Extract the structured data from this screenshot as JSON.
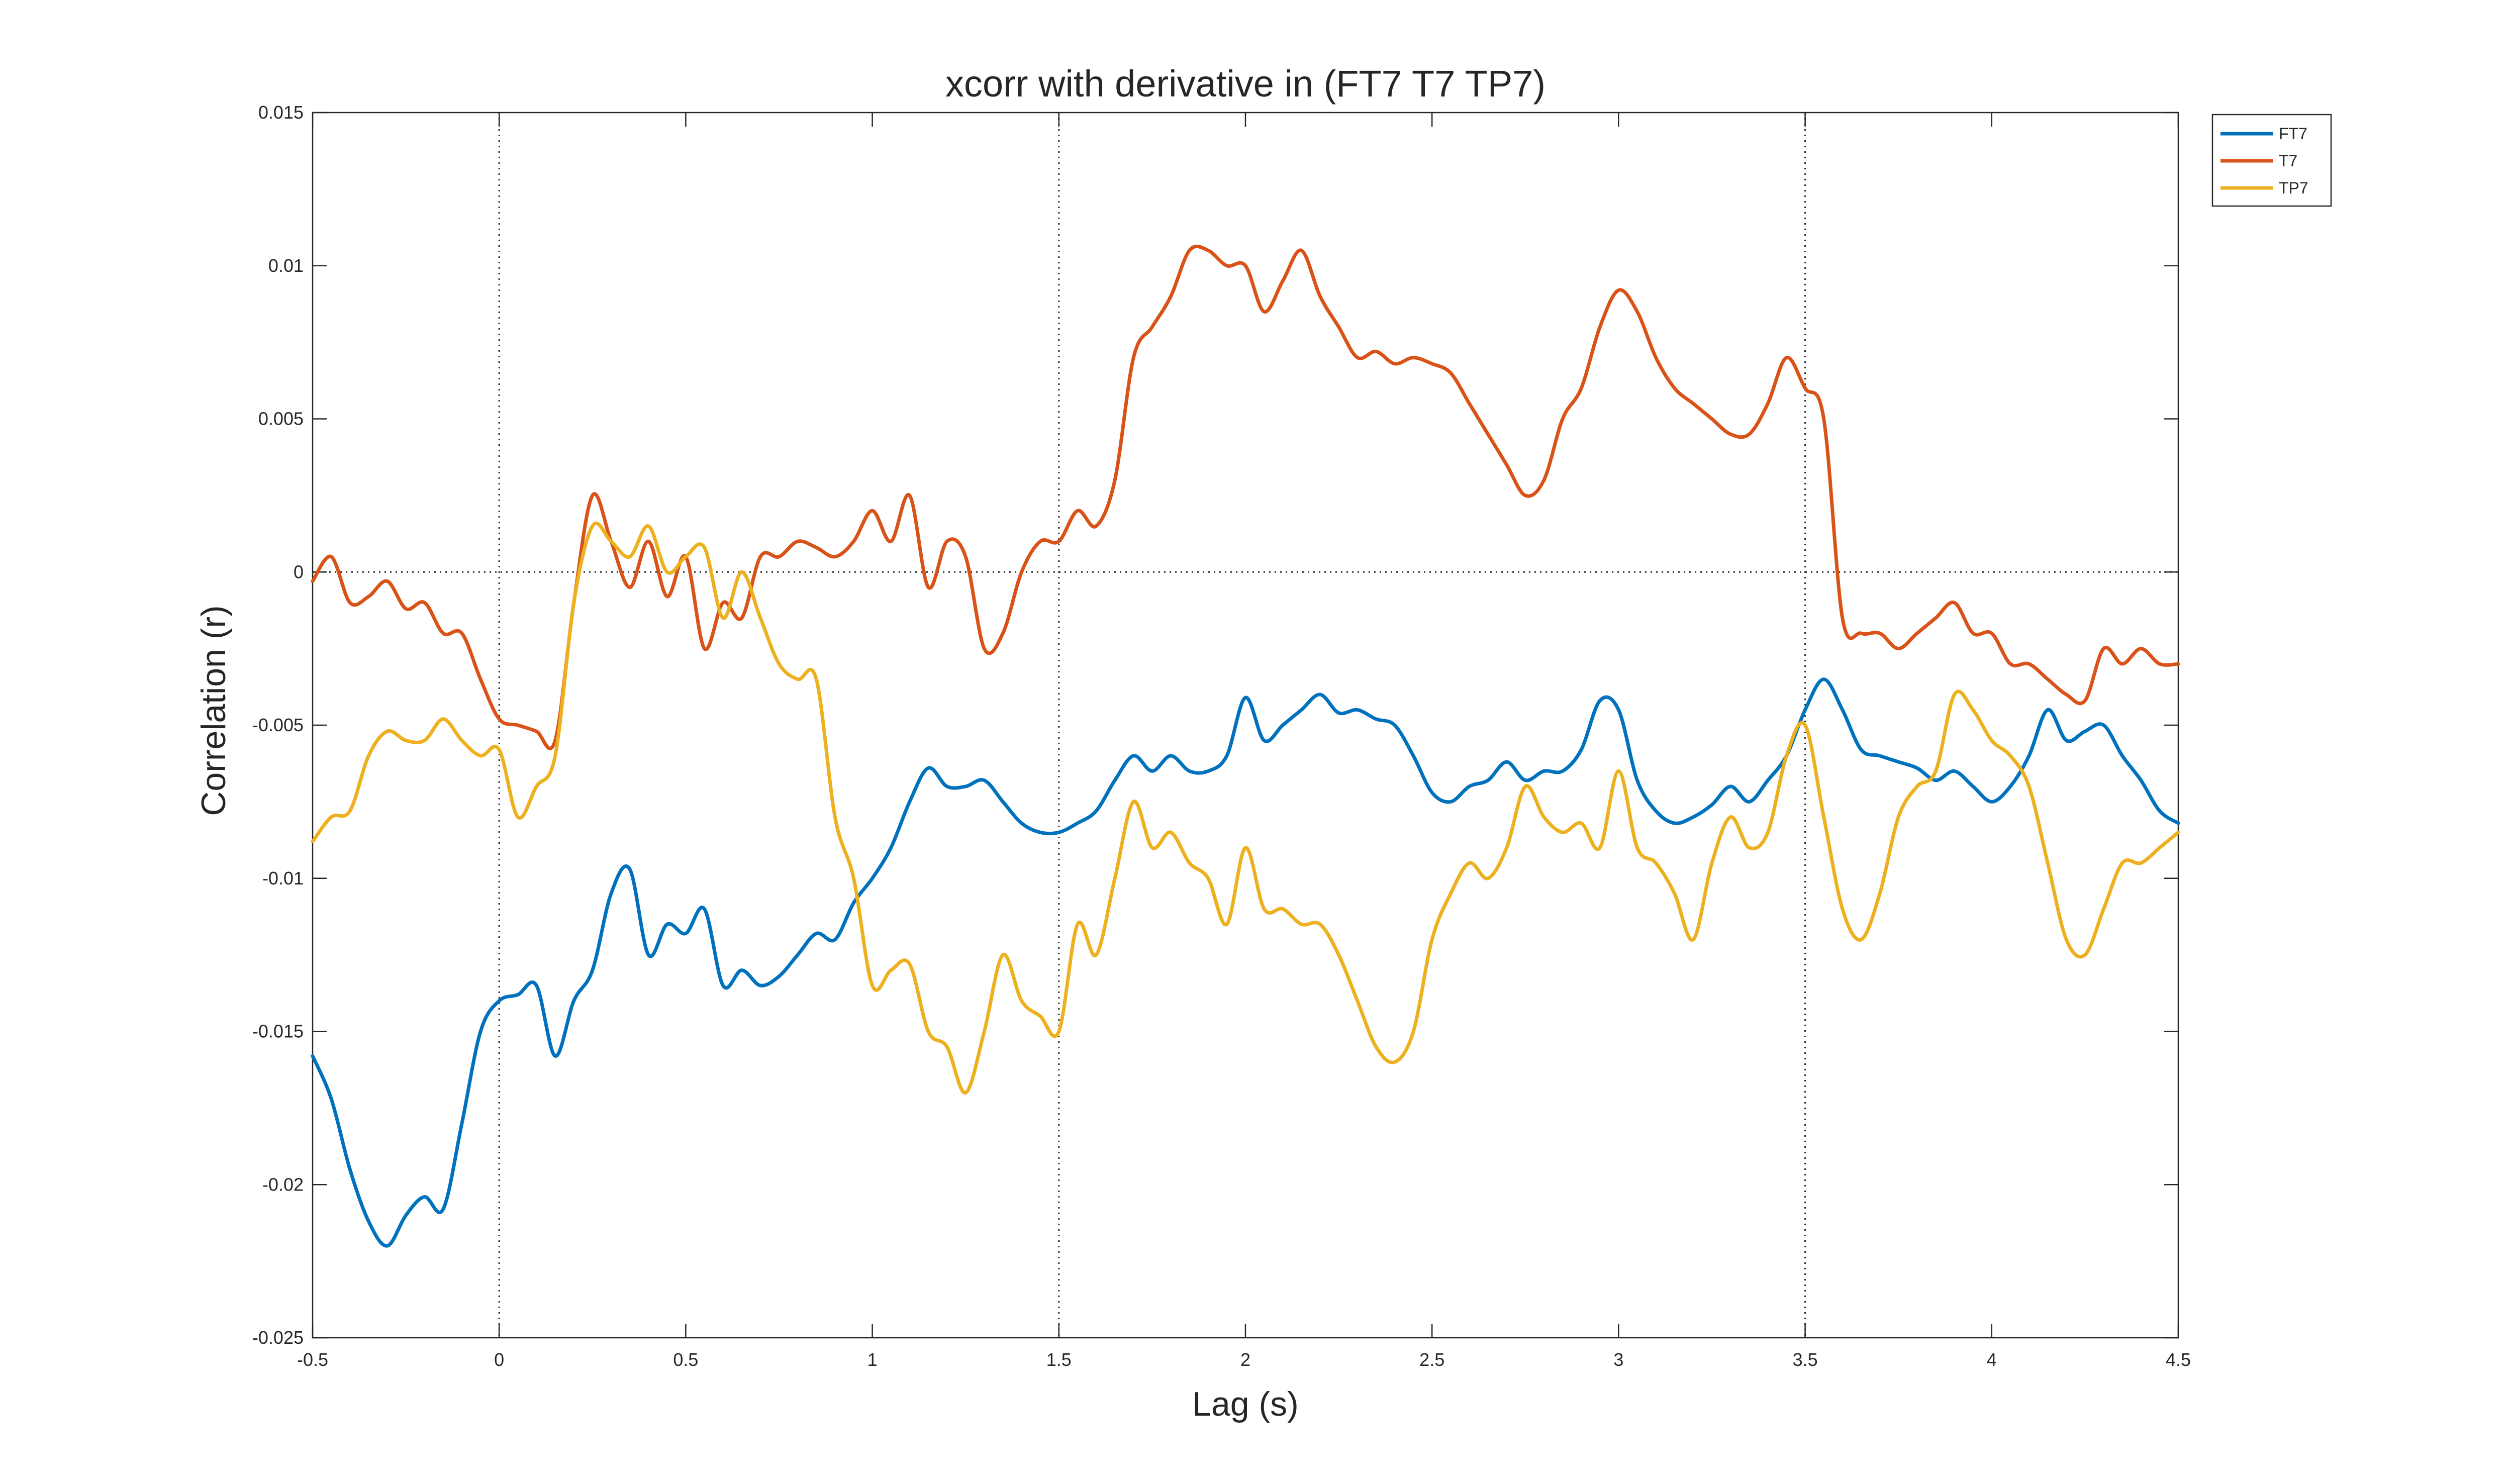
{
  "chart_data": {
    "type": "line",
    "title": "xcorr with derivative in (FT7 T7 TP7)",
    "xlabel": "Lag (s)",
    "ylabel": "Correlation (r)",
    "xlim": [
      -0.5,
      4.5
    ],
    "ylim": [
      -0.025,
      0.015
    ],
    "xticks": [
      -0.5,
      0,
      0.5,
      1,
      1.5,
      2,
      2.5,
      3,
      3.5,
      4,
      4.5
    ],
    "xtick_labels": [
      "-0.5",
      "0",
      "0.5",
      "1",
      "1.5",
      "2",
      "2.5",
      "3",
      "3.5",
      "4",
      "4.5"
    ],
    "yticks": [
      -0.025,
      -0.02,
      -0.015,
      -0.01,
      -0.005,
      0,
      0.005,
      0.01,
      0.015
    ],
    "ytick_labels": [
      "-0.025",
      "-0.02",
      "-0.015",
      "-0.01",
      "-0.005",
      "0",
      "0.005",
      "0.01",
      "0.015"
    ],
    "reference_lines": {
      "x": [
        0,
        1.5,
        3.5
      ],
      "y": [
        0
      ]
    },
    "grid": false,
    "legend": "top-right outside",
    "series": [
      {
        "name": "FT7",
        "color": "#0072BD",
        "x": [
          -0.5,
          -0.45,
          -0.4,
          -0.35,
          -0.3,
          -0.25,
          -0.2,
          -0.15,
          -0.1,
          -0.05,
          0,
          0.05,
          0.1,
          0.15,
          0.2,
          0.25,
          0.3,
          0.35,
          0.4,
          0.45,
          0.5,
          0.55,
          0.6,
          0.65,
          0.7,
          0.75,
          0.8,
          0.85,
          0.9,
          0.95,
          1,
          1.05,
          1.1,
          1.15,
          1.2,
          1.25,
          1.3,
          1.35,
          1.4,
          1.45,
          1.5,
          1.55,
          1.6,
          1.65,
          1.7,
          1.75,
          1.8,
          1.85,
          1.9,
          1.95,
          2,
          2.05,
          2.1,
          2.15,
          2.2,
          2.25,
          2.3,
          2.35,
          2.4,
          2.45,
          2.5,
          2.55,
          2.6,
          2.65,
          2.7,
          2.75,
          2.8,
          2.85,
          2.9,
          2.95,
          3,
          3.05,
          3.1,
          3.15,
          3.2,
          3.25,
          3.3,
          3.35,
          3.4,
          3.45,
          3.5,
          3.55,
          3.6,
          3.65,
          3.7,
          3.75,
          3.8,
          3.85,
          3.9,
          3.95,
          4,
          4.05,
          4.1,
          4.15,
          4.2,
          4.25,
          4.3,
          4.35,
          4.4,
          4.45,
          4.5
        ],
        "y": [
          -0.0158,
          -0.0172,
          -0.0195,
          -0.0212,
          -0.022,
          -0.021,
          -0.0204,
          -0.0208,
          -0.018,
          -0.015,
          -0.014,
          -0.0138,
          -0.0135,
          -0.0158,
          -0.014,
          -0.013,
          -0.0105,
          -0.0097,
          -0.0125,
          -0.0115,
          -0.0118,
          -0.011,
          -0.0135,
          -0.013,
          -0.0135,
          -0.0132,
          -0.0125,
          -0.0118,
          -0.012,
          -0.0108,
          -0.01,
          -0.009,
          -0.0075,
          -0.0064,
          -0.007,
          -0.007,
          -0.0068,
          -0.0075,
          -0.0082,
          -0.0085,
          -0.0085,
          -0.0082,
          -0.0078,
          -0.0068,
          -0.006,
          -0.0065,
          -0.006,
          -0.0065,
          -0.0065,
          -0.006,
          -0.0041,
          -0.0055,
          -0.005,
          -0.0045,
          -0.004,
          -0.0046,
          -0.0045,
          -0.0048,
          -0.005,
          -0.006,
          -0.0072,
          -0.0075,
          -0.007,
          -0.0068,
          -0.0062,
          -0.0068,
          -0.0065,
          -0.0065,
          -0.0058,
          -0.0042,
          -0.0045,
          -0.0068,
          -0.0078,
          -0.0082,
          -0.008,
          -0.0076,
          -0.007,
          -0.0075,
          -0.0068,
          -0.006,
          -0.0045,
          -0.0035,
          -0.0045,
          -0.0058,
          -0.006,
          -0.0062,
          -0.0064,
          -0.0068,
          -0.0065,
          -0.007,
          -0.0075,
          -0.007,
          -0.006,
          -0.0045,
          -0.0055,
          -0.0052,
          -0.005,
          -0.006,
          -0.0068,
          -0.0078,
          -0.0082
        ]
      },
      {
        "name": "T7",
        "color": "#D95319",
        "x": [
          -0.5,
          -0.45,
          -0.4,
          -0.35,
          -0.3,
          -0.25,
          -0.2,
          -0.15,
          -0.1,
          -0.05,
          0,
          0.05,
          0.1,
          0.15,
          0.2,
          0.25,
          0.3,
          0.35,
          0.4,
          0.45,
          0.5,
          0.55,
          0.6,
          0.65,
          0.7,
          0.75,
          0.8,
          0.85,
          0.9,
          0.95,
          1,
          1.05,
          1.1,
          1.15,
          1.2,
          1.25,
          1.3,
          1.35,
          1.4,
          1.45,
          1.5,
          1.55,
          1.6,
          1.65,
          1.7,
          1.75,
          1.8,
          1.85,
          1.9,
          1.95,
          2,
          2.05,
          2.1,
          2.15,
          2.2,
          2.25,
          2.3,
          2.35,
          2.4,
          2.45,
          2.5,
          2.55,
          2.6,
          2.65,
          2.7,
          2.75,
          2.8,
          2.85,
          2.9,
          2.95,
          3,
          3.05,
          3.1,
          3.15,
          3.2,
          3.25,
          3.3,
          3.35,
          3.4,
          3.45,
          3.5,
          3.55,
          3.6,
          3.65,
          3.7,
          3.75,
          3.8,
          3.85,
          3.9,
          3.95,
          4,
          4.05,
          4.1,
          4.15,
          4.2,
          4.25,
          4.3,
          4.35,
          4.4,
          4.45,
          4.5
        ],
        "y": [
          -0.0003,
          0.0005,
          -0.001,
          -0.0008,
          -0.0003,
          -0.0012,
          -0.001,
          -0.002,
          -0.002,
          -0.0035,
          -0.0048,
          -0.005,
          -0.0052,
          -0.0055,
          -0.001,
          0.0025,
          0.001,
          -0.0005,
          0.001,
          -0.0008,
          0.0005,
          -0.0025,
          -0.001,
          -0.0015,
          0.0005,
          0.0005,
          0.001,
          0.0008,
          0.0005,
          0.001,
          0.002,
          0.001,
          0.0025,
          -0.0005,
          0.001,
          0.0005,
          -0.0025,
          -0.002,
          0.0,
          0.001,
          0.001,
          0.002,
          0.0015,
          0.003,
          0.007,
          0.008,
          0.009,
          0.0105,
          0.0105,
          0.01,
          0.01,
          0.0085,
          0.0095,
          0.0105,
          0.009,
          0.008,
          0.007,
          0.0072,
          0.0068,
          0.007,
          0.0068,
          0.0065,
          0.0055,
          0.0045,
          0.0035,
          0.0025,
          0.003,
          0.005,
          0.006,
          0.008,
          0.0092,
          0.0085,
          0.007,
          0.006,
          0.0055,
          0.005,
          0.0045,
          0.0045,
          0.0055,
          0.007,
          0.006,
          0.005,
          -0.0015,
          -0.002,
          -0.002,
          -0.0025,
          -0.002,
          -0.0015,
          -0.001,
          -0.002,
          -0.002,
          -0.003,
          -0.003,
          -0.0035,
          -0.004,
          -0.0042,
          -0.0025,
          -0.003,
          -0.0025,
          -0.003,
          -0.003
        ]
      },
      {
        "name": "TP7",
        "color": "#EDB120",
        "x": [
          -0.5,
          -0.45,
          -0.4,
          -0.35,
          -0.3,
          -0.25,
          -0.2,
          -0.15,
          -0.1,
          -0.05,
          0,
          0.05,
          0.1,
          0.15,
          0.2,
          0.25,
          0.3,
          0.35,
          0.4,
          0.45,
          0.5,
          0.55,
          0.6,
          0.65,
          0.7,
          0.75,
          0.8,
          0.85,
          0.9,
          0.95,
          1,
          1.05,
          1.1,
          1.15,
          1.2,
          1.25,
          1.3,
          1.35,
          1.4,
          1.45,
          1.5,
          1.55,
          1.6,
          1.65,
          1.7,
          1.75,
          1.8,
          1.85,
          1.9,
          1.95,
          2,
          2.05,
          2.1,
          2.15,
          2.2,
          2.25,
          2.3,
          2.35,
          2.4,
          2.45,
          2.5,
          2.55,
          2.6,
          2.65,
          2.7,
          2.75,
          2.8,
          2.85,
          2.9,
          2.95,
          3,
          3.05,
          3.1,
          3.15,
          3.2,
          3.25,
          3.3,
          3.35,
          3.4,
          3.45,
          3.5,
          3.55,
          3.6,
          3.65,
          3.7,
          3.75,
          3.8,
          3.85,
          3.9,
          3.95,
          4,
          4.05,
          4.1,
          4.15,
          4.2,
          4.25,
          4.3,
          4.35,
          4.4,
          4.45,
          4.5
        ],
        "y": [
          -0.0088,
          -0.008,
          -0.0078,
          -0.006,
          -0.0052,
          -0.0055,
          -0.0055,
          -0.0048,
          -0.0055,
          -0.006,
          -0.0058,
          -0.008,
          -0.007,
          -0.006,
          -0.001,
          0.0015,
          0.001,
          0.0005,
          0.0015,
          0.0,
          0.0005,
          0.0008,
          -0.0015,
          0.0,
          -0.0015,
          -0.003,
          -0.0035,
          -0.0035,
          -0.008,
          -0.01,
          -0.0135,
          -0.013,
          -0.0128,
          -0.015,
          -0.0155,
          -0.017,
          -0.015,
          -0.0125,
          -0.014,
          -0.0145,
          -0.015,
          -0.0115,
          -0.0125,
          -0.01,
          -0.0075,
          -0.009,
          -0.0085,
          -0.0095,
          -0.01,
          -0.0115,
          -0.009,
          -0.011,
          -0.011,
          -0.0115,
          -0.0115,
          -0.0125,
          -0.014,
          -0.0155,
          -0.016,
          -0.015,
          -0.012,
          -0.0105,
          -0.0095,
          -0.01,
          -0.009,
          -0.007,
          -0.008,
          -0.0085,
          -0.0082,
          -0.009,
          -0.0065,
          -0.009,
          -0.0095,
          -0.0105,
          -0.012,
          -0.0095,
          -0.008,
          -0.009,
          -0.0085,
          -0.006,
          -0.005,
          -0.008,
          -0.011,
          -0.012,
          -0.0105,
          -0.008,
          -0.007,
          -0.0065,
          -0.004,
          -0.0045,
          -0.0055,
          -0.006,
          -0.007,
          -0.0095,
          -0.012,
          -0.0125,
          -0.011,
          -0.0095,
          -0.0095,
          -0.009,
          -0.0085
        ]
      }
    ]
  }
}
